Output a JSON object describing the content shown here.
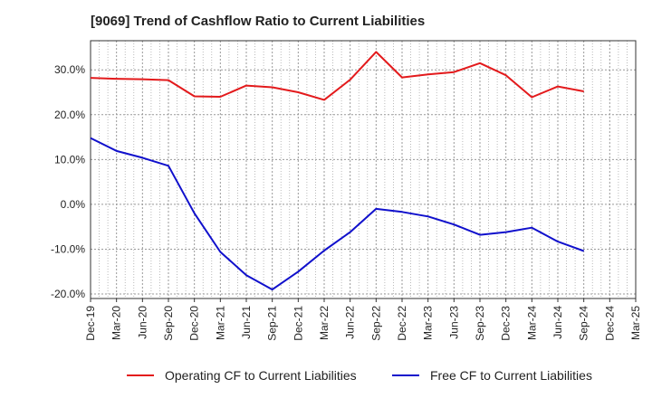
{
  "chart_data": {
    "type": "line",
    "title": "[9069]  Trend of Cashflow Ratio to Current Liabilities",
    "xlabel": "",
    "ylabel": "",
    "categories": [
      "Dec-19",
      "Mar-20",
      "Jun-20",
      "Sep-20",
      "Dec-20",
      "Mar-21",
      "Jun-21",
      "Sep-21",
      "Dec-21",
      "Mar-22",
      "Jun-22",
      "Sep-22",
      "Dec-22",
      "Mar-23",
      "Jun-23",
      "Sep-23",
      "Dec-23",
      "Mar-24",
      "Jun-24",
      "Sep-24",
      "Dec-24",
      "Mar-25"
    ],
    "y_ticks": [
      "30.0%",
      "20.0%",
      "10.0%",
      "0.0%",
      "-10.0%",
      "-20.0%"
    ],
    "y_tick_values": [
      30,
      20,
      10,
      0,
      -10,
      -20
    ],
    "ylim": [
      -21,
      36.5
    ],
    "grid": true,
    "legend_position": "bottom",
    "series": [
      {
        "name": "Operating CF to Current Liabilities",
        "color": "#e31a1c",
        "values": [
          28.2,
          28.0,
          27.9,
          27.7,
          24.1,
          24.0,
          26.5,
          26.1,
          25.0,
          23.3,
          27.8,
          34.0,
          28.3,
          29.0,
          29.5,
          31.5,
          28.8,
          23.9,
          26.3,
          25.2,
          null,
          null
        ]
      },
      {
        "name": "Free CF to Current Liabilities",
        "color": "#1010cc",
        "values": [
          14.8,
          11.9,
          10.4,
          8.6,
          -2.0,
          -10.6,
          -15.8,
          -19.0,
          -15.0,
          -10.3,
          -6.2,
          -1.0,
          -1.7,
          -2.7,
          -4.5,
          -6.8,
          -6.2,
          -5.2,
          -8.3,
          -10.4,
          null,
          null
        ]
      }
    ]
  }
}
